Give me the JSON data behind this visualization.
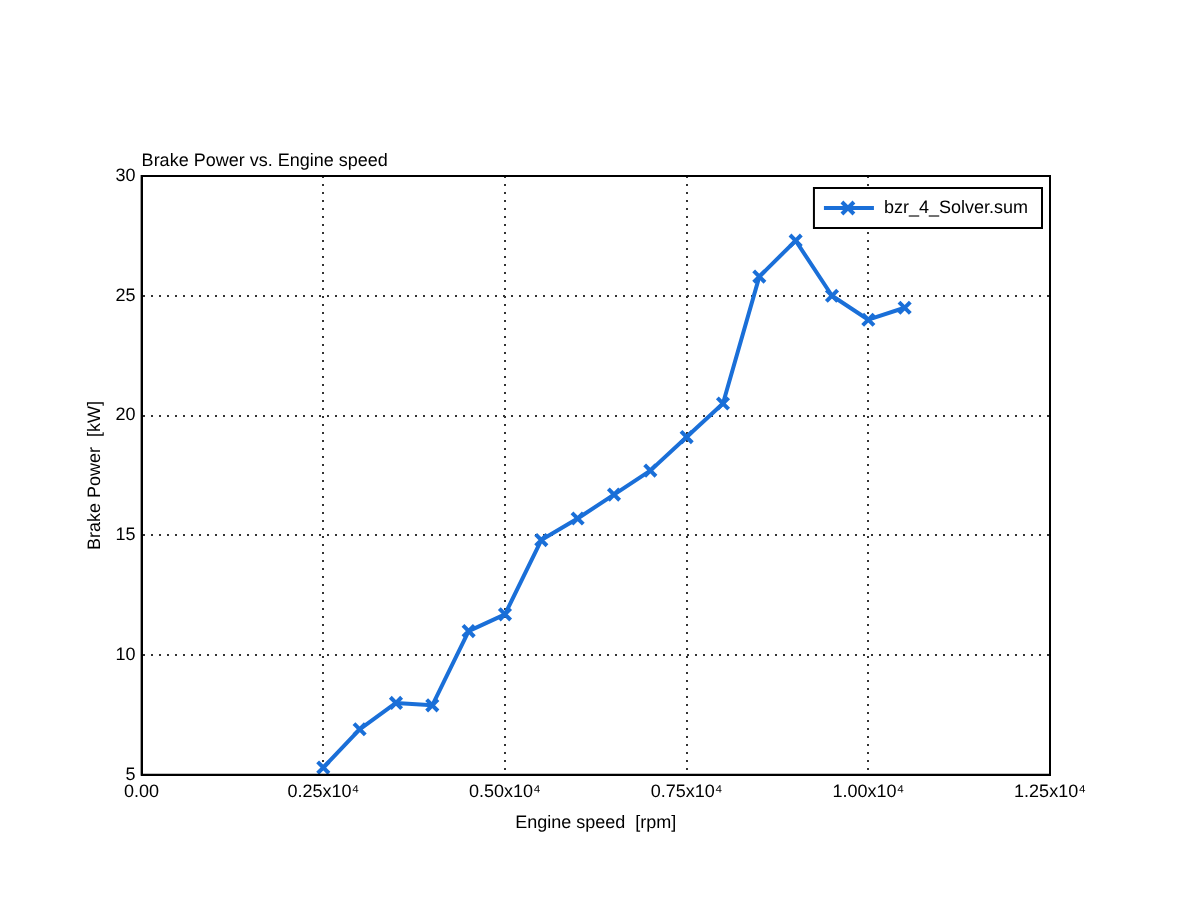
{
  "chart_data": {
    "type": "line",
    "title": "Brake Power vs. Engine speed",
    "xlabel": "Engine speed  [rpm]",
    "ylabel": "Brake Power  [kW]",
    "x": [
      2500,
      3000,
      3500,
      4000,
      4500,
      5000,
      5500,
      6000,
      6500,
      7000,
      7500,
      8000,
      8500,
      9000,
      9500,
      10000,
      10500
    ],
    "series": [
      {
        "name": "bzr_4_Solver.sum",
        "color": "#1a6fd8",
        "values": [
          5.3,
          6.9,
          8.0,
          7.9,
          11.0,
          11.7,
          14.8,
          15.7,
          16.7,
          17.7,
          19.1,
          20.5,
          25.8,
          27.3,
          25.0,
          24.0,
          24.5
        ]
      }
    ],
    "xlim": [
      0,
      12500
    ],
    "xticks": [
      {
        "value": 0,
        "label": "0.00"
      },
      {
        "value": 2500,
        "label": "0.25x10⁴"
      },
      {
        "value": 5000,
        "label": "0.50x10⁴"
      },
      {
        "value": 7500,
        "label": "0.75x10⁴"
      },
      {
        "value": 10000,
        "label": "1.00x10⁴"
      },
      {
        "value": 12500,
        "label": "1.25x10⁴"
      }
    ],
    "ylim": [
      5,
      30
    ],
    "yticks": [
      5,
      10,
      15,
      20,
      25,
      30
    ],
    "grid": true,
    "legend": "top right",
    "marker": "cross",
    "line_style": "solid"
  }
}
